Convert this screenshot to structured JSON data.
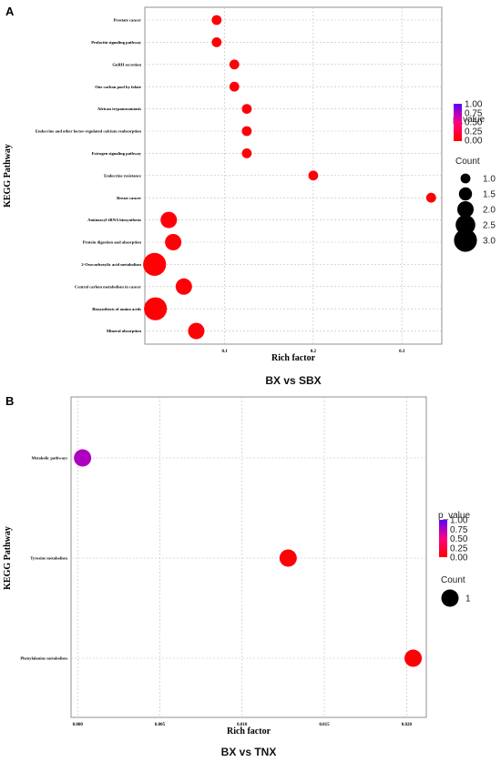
{
  "chart_data": [
    {
      "panel": "A",
      "type": "scatter",
      "caption": "BX vs SBX",
      "xlabel": "Rich factor",
      "ylabel": "KEGG Pathway",
      "xlim": [
        0.01,
        0.345
      ],
      "xticks": [
        0.1,
        0.2,
        0.3
      ],
      "xtick_labels": [
        "0.1",
        "0.2",
        "0.3"
      ],
      "grid": true,
      "categories": [
        "Prostate cancer",
        "Prolactin signaling pathway",
        "GnRH secretion",
        "One carbon pool by folate",
        "African trypanosomiasis",
        "Endocrine and other factor-regulated calcium reabsorption",
        "Estrogen signaling pathway",
        "Endocrine resistance",
        "Breast cancer",
        "Aminoacyl-tRNA biosynthesis",
        "Protein digestion and absorption",
        "2-Oxocarboxylic acid metabolism",
        "Central carbon metabolism in cancer",
        "Biosynthesis of amino acids",
        "Mineral absorption"
      ],
      "points": [
        {
          "pathway": "Prostate cancer",
          "rich_factor": 0.091,
          "count": 1,
          "p_value": 0.03
        },
        {
          "pathway": "Prolactin signaling pathway",
          "rich_factor": 0.091,
          "count": 1,
          "p_value": 0.03
        },
        {
          "pathway": "GnRH secretion",
          "rich_factor": 0.111,
          "count": 1,
          "p_value": 0.03
        },
        {
          "pathway": "One carbon pool by folate",
          "rich_factor": 0.111,
          "count": 1,
          "p_value": 0.03
        },
        {
          "pathway": "African trypanosomiasis",
          "rich_factor": 0.125,
          "count": 1,
          "p_value": 0.03
        },
        {
          "pathway": "Endocrine and other factor-regulated calcium reabsorption",
          "rich_factor": 0.125,
          "count": 1,
          "p_value": 0.03
        },
        {
          "pathway": "Estrogen signaling pathway",
          "rich_factor": 0.125,
          "count": 1,
          "p_value": 0.03
        },
        {
          "pathway": "Endocrine resistance",
          "rich_factor": 0.2,
          "count": 1,
          "p_value": 0.03
        },
        {
          "pathway": "Breast cancer",
          "rich_factor": 0.333,
          "count": 1,
          "p_value": 0.03
        },
        {
          "pathway": "Aminoacyl-tRNA biosynthesis",
          "rich_factor": 0.037,
          "count": 2,
          "p_value": 0.03
        },
        {
          "pathway": "Protein digestion and absorption",
          "rich_factor": 0.042,
          "count": 2,
          "p_value": 0.03
        },
        {
          "pathway": "2-Oxocarboxylic acid metabolism",
          "rich_factor": 0.021,
          "count": 3,
          "p_value": 0.02
        },
        {
          "pathway": "Central carbon metabolism in cancer",
          "rich_factor": 0.054,
          "count": 2,
          "p_value": 0.03
        },
        {
          "pathway": "Biosynthesis of amino acids",
          "rich_factor": 0.022,
          "count": 3,
          "p_value": 0.02
        },
        {
          "pathway": "Mineral absorption",
          "rich_factor": 0.068,
          "count": 2,
          "p_value": 0.03
        }
      ],
      "color_legend": {
        "title": "p_value",
        "ticks": [
          "1.00",
          "0.75",
          "0.50",
          "0.25",
          "0.00"
        ],
        "low_color": "#ff0000",
        "mid_color": "#ff0080",
        "high_color": "#5b00ff"
      },
      "size_legend": {
        "title": "Count",
        "labels": [
          "1.0",
          "1.5",
          "2.0",
          "2.5",
          "3.0"
        ],
        "values": [
          1.0,
          1.5,
          2.0,
          2.5,
          3.0
        ]
      }
    },
    {
      "panel": "B",
      "type": "scatter",
      "caption": "BX vs TNX",
      "xlabel": "Rich factor",
      "ylabel": "KEGG Pathway",
      "xlim": [
        -0.0004,
        0.0212
      ],
      "xticks": [
        0.0,
        0.005,
        0.01,
        0.015,
        0.02
      ],
      "xtick_labels": [
        "0.000",
        "0.005",
        "0.010",
        "0.015",
        "0.020"
      ],
      "grid": true,
      "categories": [
        "Metabolic pathways",
        "Tyrosine metabolism",
        "Phenylalanine metabolism"
      ],
      "points": [
        {
          "pathway": "Metabolic pathways",
          "rich_factor": 0.0003,
          "count": 1,
          "p_value": 0.75
        },
        {
          "pathway": "Tyrosine metabolism",
          "rich_factor": 0.0128,
          "count": 1,
          "p_value": 0.02
        },
        {
          "pathway": "Phenylalanine metabolism",
          "rich_factor": 0.0204,
          "count": 1,
          "p_value": 0.02
        }
      ],
      "color_legend": {
        "title": "p_value",
        "ticks": [
          "1.00",
          "0.75",
          "0.50",
          "0.25",
          "0.00"
        ],
        "low_color": "#ff0000",
        "mid_color": "#ff0080",
        "high_color": "#5b00ff"
      },
      "size_legend": {
        "title": "Count",
        "labels": [
          "1"
        ],
        "values": [
          1
        ]
      }
    }
  ]
}
